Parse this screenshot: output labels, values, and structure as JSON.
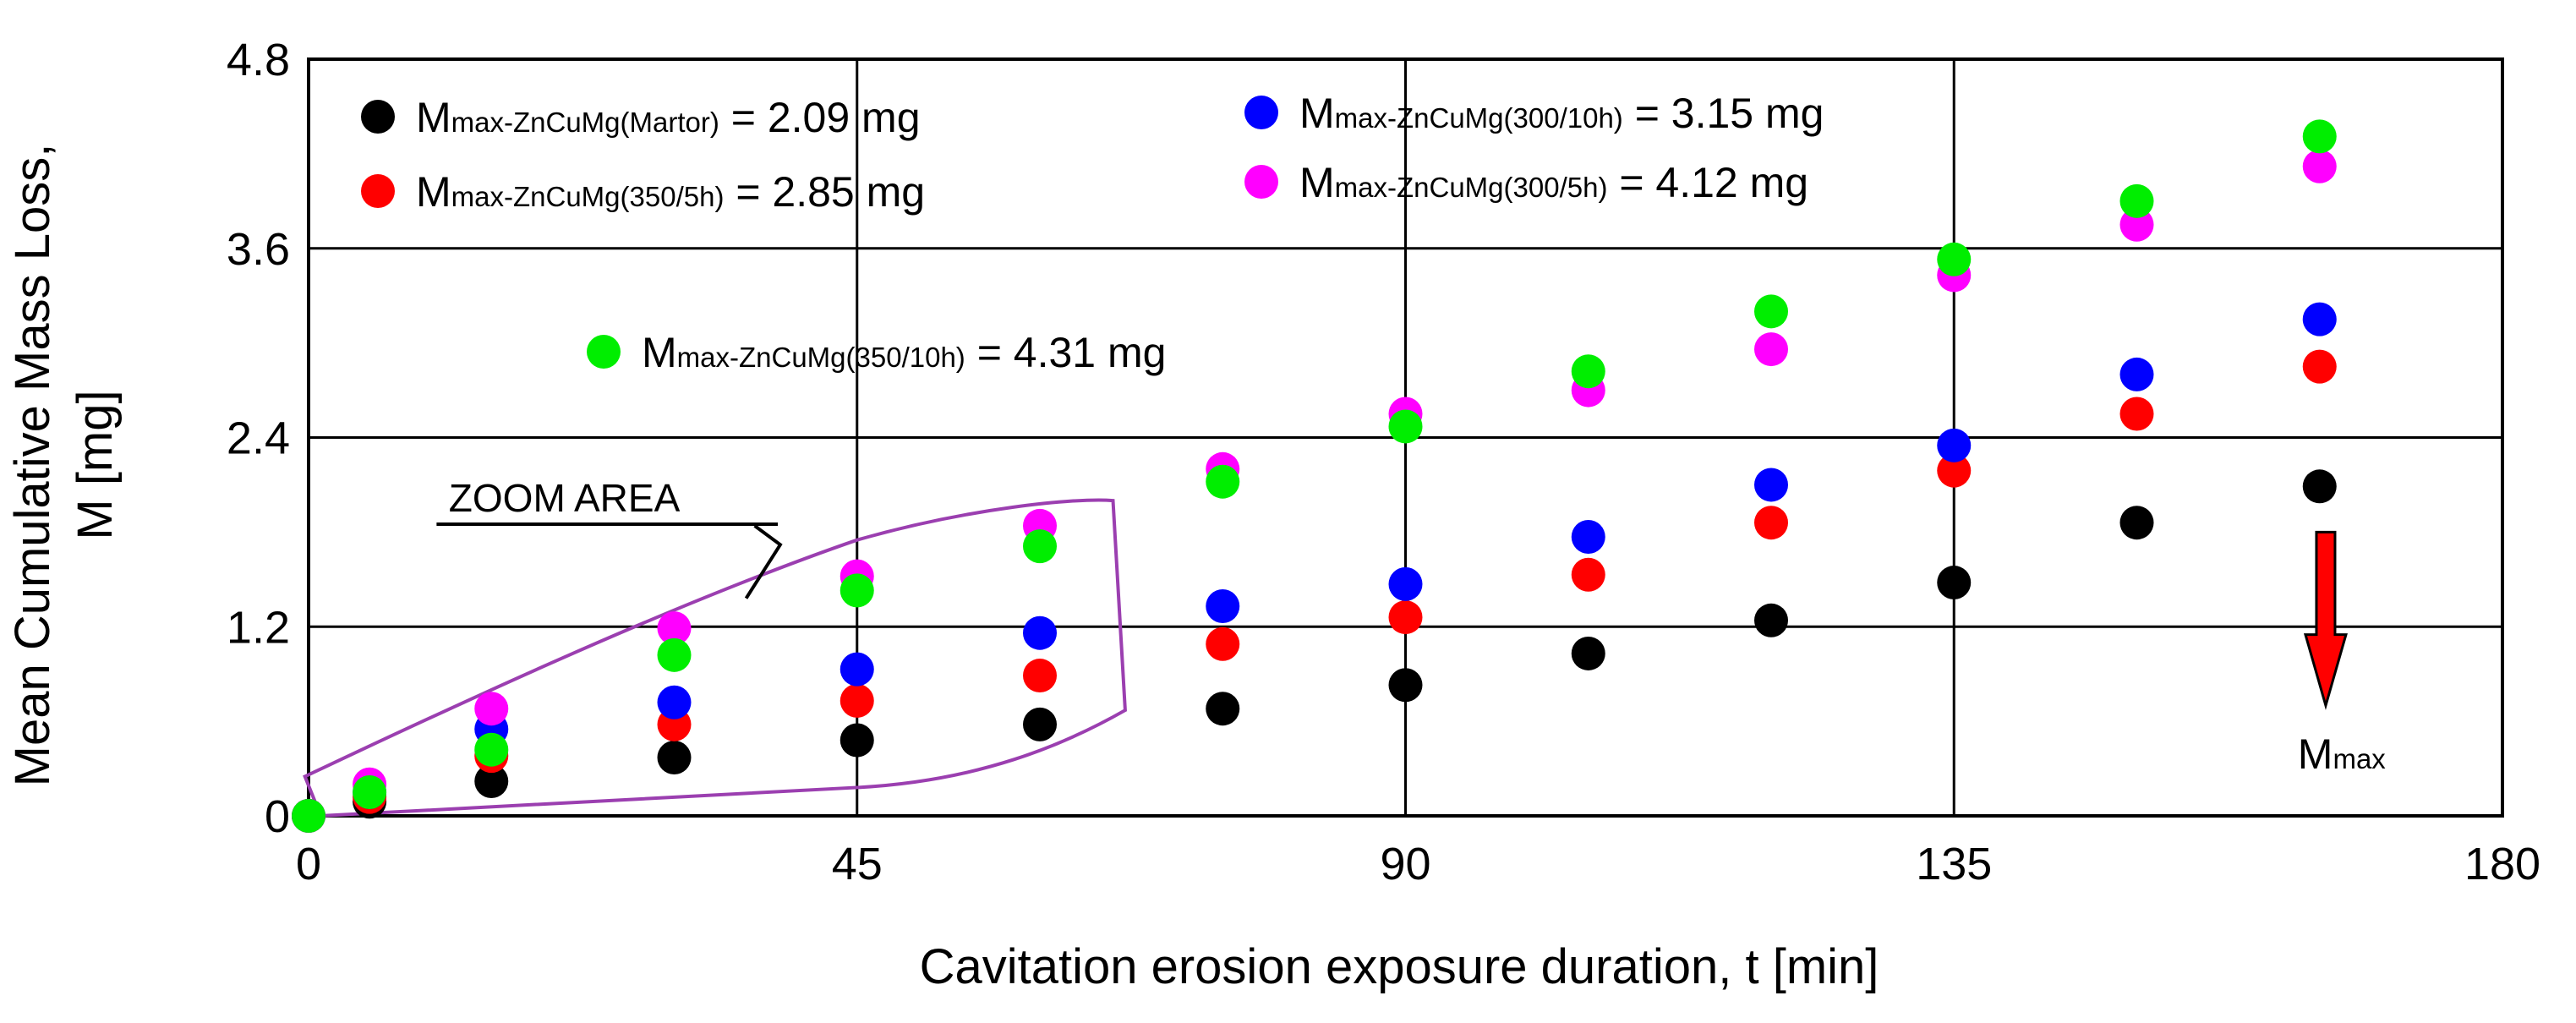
{
  "chart_data": {
    "type": "scatter",
    "title": "",
    "xlabel": "Cavitation erosion exposure duration, t [min]",
    "ylabel_line1": "Mean Cumulative Mass Loss,",
    "ylabel_line2": "M [mg]",
    "xlim": [
      0,
      180
    ],
    "ylim": [
      0,
      4.8
    ],
    "xticks": [
      "0",
      "45",
      "90",
      "135",
      "180"
    ],
    "yticks": [
      "0",
      "1.2",
      "2.4",
      "3.6",
      "4.8"
    ],
    "xtick_values": [
      0,
      45,
      90,
      135,
      180
    ],
    "ytick_values": [
      0,
      1.2,
      2.4,
      3.6,
      4.8
    ],
    "grid": true,
    "x": [
      0,
      5,
      15,
      30,
      45,
      60,
      75,
      90,
      105,
      120,
      135,
      150,
      165
    ],
    "series": [
      {
        "name": "ZnCuMg(Martor)",
        "color": "#000000",
        "legend_prefix": "M",
        "legend_sub": "max-ZnCuMg(Martor)",
        "legend_value": " = 2.09 mg",
        "values": [
          0,
          0.09,
          0.22,
          0.37,
          0.48,
          0.58,
          0.68,
          0.83,
          1.03,
          1.24,
          1.48,
          1.86,
          2.09
        ]
      },
      {
        "name": "ZnCuMg(350/5h)",
        "color": "#ff0000",
        "legend_prefix": "M",
        "legend_sub": "max-ZnCuMg(350/5h)",
        "legend_value": " = 2.85 mg",
        "values": [
          0,
          0.12,
          0.38,
          0.58,
          0.73,
          0.89,
          1.09,
          1.26,
          1.53,
          1.86,
          2.19,
          2.55,
          2.85
        ]
      },
      {
        "name": "ZnCuMg(300/10h)",
        "color": "#0000ff",
        "legend_prefix": "M",
        "legend_sub": "max-ZnCuMg(300/10h)",
        "legend_value": " = 3.15 mg",
        "values": [
          0,
          0.15,
          0.55,
          0.72,
          0.93,
          1.16,
          1.33,
          1.47,
          1.77,
          2.1,
          2.35,
          2.8,
          3.15
        ]
      },
      {
        "name": "ZnCuMg(300/5h)",
        "color": "#ff00ff",
        "legend_prefix": "M",
        "legend_sub": "max-ZnCuMg(300/5h)",
        "legend_value": " = 4.12 mg",
        "values": [
          0,
          0.2,
          0.68,
          1.19,
          1.52,
          1.84,
          2.2,
          2.55,
          2.7,
          2.96,
          3.43,
          3.75,
          4.12
        ]
      },
      {
        "name": "ZnCuMg(350/10h)",
        "color": "#00ee00",
        "legend_prefix": "M",
        "legend_sub": "max-ZnCuMg(350/10h)",
        "legend_value": " = 4.31 mg",
        "values": [
          0,
          0.15,
          0.42,
          1.02,
          1.43,
          1.71,
          2.12,
          2.47,
          2.82,
          3.2,
          3.53,
          3.9,
          4.31
        ]
      }
    ],
    "annotations": {
      "zoom_label": "ZOOM  AREA",
      "mmax_prefix": "M",
      "mmax_sub": "max",
      "arrow_color": "#ff0000",
      "zoom_outline_color": "#9b3fb0"
    }
  }
}
